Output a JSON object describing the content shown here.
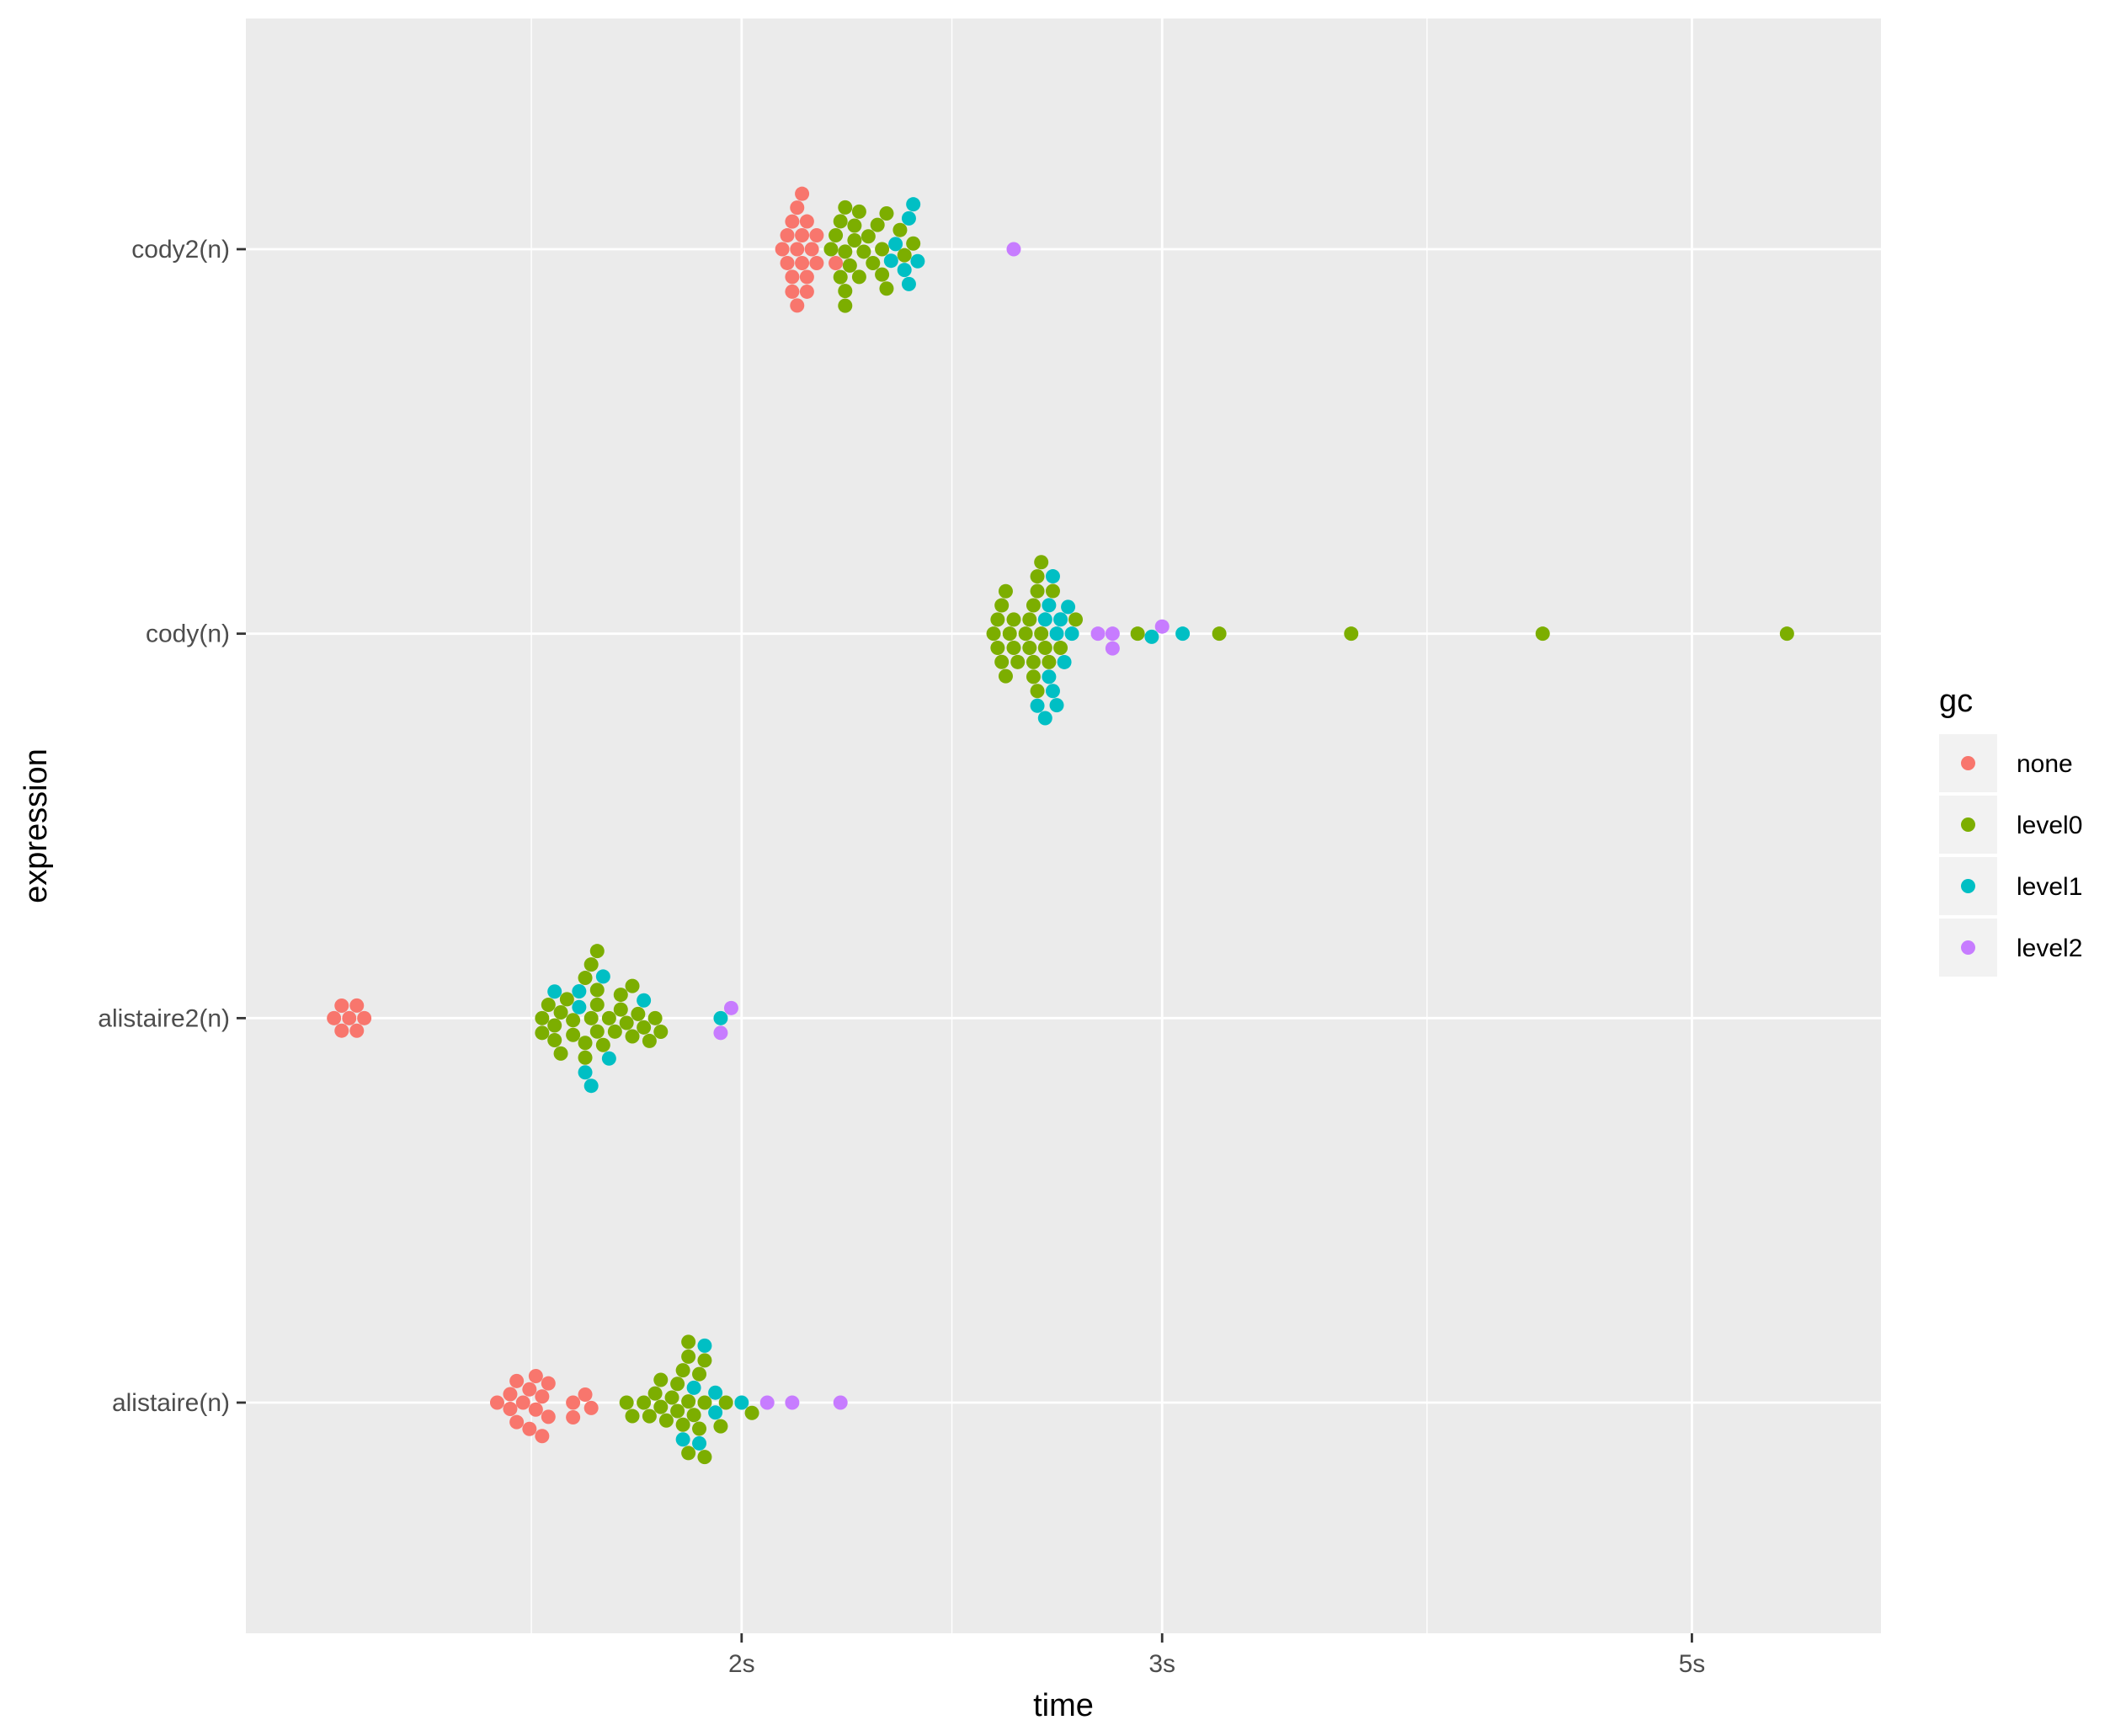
{
  "chart_data": {
    "type": "scatter",
    "subtype": "beeswarm",
    "title": "",
    "xlabel": "time",
    "ylabel": "expression",
    "x_scale": "log10",
    "x_unit": "seconds",
    "xlim": [
      1.24,
      6.0
    ],
    "x_ticks": [
      {
        "value": 2,
        "label": "2s"
      },
      {
        "value": 3,
        "label": "3s"
      },
      {
        "value": 5,
        "label": "5s"
      }
    ],
    "categories": [
      "alistaire(n)",
      "alistaire2(n)",
      "cody(n)",
      "cody2(n)"
    ],
    "grid": true,
    "legend": {
      "title": "gc",
      "position": "right",
      "entries": [
        {
          "key": "none",
          "label": "none",
          "color": "#F8766D"
        },
        {
          "key": "level0",
          "label": "level0",
          "color": "#7CAE00"
        },
        {
          "key": "level1",
          "label": "level1",
          "color": "#00BFC4"
        },
        {
          "key": "level2",
          "label": "level2",
          "color": "#C77CFF"
        }
      ]
    },
    "series": [
      {
        "category": "alistaire(n)",
        "points": {
          "none": [
            1.58,
            1.6,
            1.6,
            1.61,
            1.61,
            1.62,
            1.63,
            1.63,
            1.64,
            1.64,
            1.65,
            1.65,
            1.66,
            1.66,
            1.7,
            1.7,
            1.72,
            1.73
          ],
          "level0": [
            1.79,
            1.8,
            1.82,
            1.83,
            1.84,
            1.85,
            1.85,
            1.86,
            1.87,
            1.88,
            1.88,
            1.89,
            1.89,
            1.9,
            1.9,
            1.9,
            1.9,
            1.91,
            1.92,
            1.92,
            1.93,
            1.93,
            1.93,
            1.96,
            1.97,
            2.02
          ],
          "level1": [
            1.89,
            1.91,
            1.92,
            1.93,
            1.95,
            1.95,
            2.0
          ],
          "level2": [
            2.05,
            2.1,
            2.2
          ]
        }
      },
      {
        "category": "alistaire2(n)",
        "points": {
          "none": [
            1.35,
            1.36,
            1.36,
            1.37,
            1.38,
            1.38,
            1.39
          ],
          "level0": [
            1.65,
            1.65,
            1.66,
            1.67,
            1.67,
            1.68,
            1.68,
            1.69,
            1.7,
            1.7,
            1.72,
            1.72,
            1.72,
            1.73,
            1.73,
            1.74,
            1.74,
            1.74,
            1.74,
            1.75,
            1.76,
            1.77,
            1.78,
            1.78,
            1.79,
            1.8,
            1.8,
            1.81,
            1.82,
            1.83,
            1.84,
            1.85
          ],
          "level1": [
            1.67,
            1.71,
            1.71,
            1.72,
            1.73,
            1.75,
            1.76,
            1.82,
            1.96
          ],
          "level2": [
            1.96,
            1.98
          ]
        }
      },
      {
        "category": "cody(n)",
        "points": {
          "none": [],
          "level0": [
            2.55,
            2.56,
            2.56,
            2.57,
            2.57,
            2.58,
            2.58,
            2.59,
            2.6,
            2.6,
            2.61,
            2.63,
            2.64,
            2.64,
            2.65,
            2.65,
            2.65,
            2.66,
            2.66,
            2.66,
            2.67,
            2.67,
            2.68,
            2.69,
            2.7,
            2.72,
            2.76,
            2.93,
            3.17,
            3.6,
            4.33,
            5.48
          ],
          "level1": [
            2.66,
            2.68,
            2.68,
            2.69,
            2.69,
            2.7,
            2.7,
            2.71,
            2.71,
            2.72,
            2.73,
            2.74,
            2.75,
            2.97,
            3.06
          ],
          "level2": [
            2.82,
            2.86,
            2.86,
            3.0
          ]
        }
      },
      {
        "category": "cody2(n)",
        "points": {
          "none": [
            2.08,
            2.09,
            2.09,
            2.1,
            2.1,
            2.1,
            2.11,
            2.11,
            2.11,
            2.12,
            2.12,
            2.12,
            2.13,
            2.13,
            2.13,
            2.14,
            2.15,
            2.15,
            2.19
          ],
          "level0": [
            2.18,
            2.19,
            2.2,
            2.2,
            2.21,
            2.21,
            2.21,
            2.21,
            2.22,
            2.23,
            2.23,
            2.24,
            2.24,
            2.25,
            2.26,
            2.27,
            2.28,
            2.29,
            2.29,
            2.3,
            2.3,
            2.33,
            2.34,
            2.36
          ],
          "level1": [
            2.31,
            2.32,
            2.34,
            2.35,
            2.35,
            2.36,
            2.37
          ],
          "level2": [
            2.6
          ]
        }
      }
    ]
  }
}
